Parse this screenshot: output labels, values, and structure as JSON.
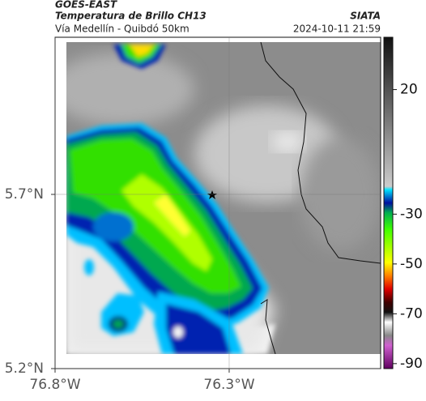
{
  "header": {
    "title": "GOES-EAST",
    "subtitle": "Temperatura de Brillo CH13",
    "route": "Vía Medellín - Quibdó 50km",
    "source": "SIATA",
    "timestamp": "2024-10-11 21:59"
  },
  "map": {
    "xlim": [
      -76.8,
      -75.865
    ],
    "ylim": [
      5.2,
      6.151
    ],
    "xticks": [
      {
        "value": -76.8,
        "label": "76.8°W"
      },
      {
        "value": -76.3,
        "label": "76.3°W"
      }
    ],
    "yticks": [
      {
        "value": 5.7,
        "label": "5.7°N"
      },
      {
        "value": 5.2,
        "label": "5.2°N"
      }
    ],
    "grid": true
  },
  "colorbar": {
    "lim": [
      -92,
      41
    ],
    "ticks": [
      20,
      -30,
      -50,
      -70,
      -90
    ]
  }
}
